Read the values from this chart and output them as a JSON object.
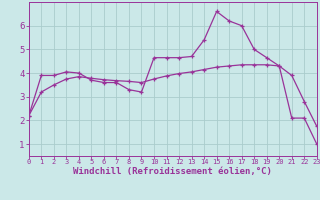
{
  "background_color": "#cbe8e8",
  "grid_color": "#aacccc",
  "line_color": "#993399",
  "xlabel": "Windchill (Refroidissement éolien,°C)",
  "xlabel_fontsize": 6.5,
  "xtick_fontsize": 5.0,
  "ytick_fontsize": 6.5,
  "xlim": [
    0,
    23
  ],
  "ylim": [
    0.5,
    7.0
  ],
  "yticks": [
    1,
    2,
    3,
    4,
    5,
    6
  ],
  "xticks": [
    0,
    1,
    2,
    3,
    4,
    5,
    6,
    7,
    8,
    9,
    10,
    11,
    12,
    13,
    14,
    15,
    16,
    17,
    18,
    19,
    20,
    21,
    22,
    23
  ],
  "series1_x": [
    0,
    1,
    2,
    3,
    4,
    5,
    6,
    7,
    8,
    9,
    10,
    11,
    12,
    13,
    14,
    15,
    16,
    17,
    18,
    19,
    20,
    21,
    22,
    23
  ],
  "series1_y": [
    2.2,
    3.9,
    3.9,
    4.05,
    4.0,
    3.7,
    3.6,
    3.6,
    3.3,
    3.2,
    4.65,
    4.65,
    4.65,
    4.7,
    5.4,
    6.6,
    6.2,
    6.0,
    5.0,
    4.65,
    4.3,
    2.1,
    2.1,
    1.0
  ],
  "series2_x": [
    0,
    1,
    2,
    3,
    4,
    5,
    6,
    7,
    8,
    9,
    10,
    11,
    12,
    13,
    14,
    15,
    16,
    17,
    18,
    19,
    20,
    21,
    22,
    23
  ],
  "series2_y": [
    2.2,
    3.2,
    3.5,
    3.75,
    3.85,
    3.78,
    3.72,
    3.68,
    3.65,
    3.6,
    3.75,
    3.88,
    3.98,
    4.05,
    4.15,
    4.25,
    4.3,
    4.35,
    4.35,
    4.35,
    4.3,
    3.9,
    2.8,
    1.75
  ]
}
